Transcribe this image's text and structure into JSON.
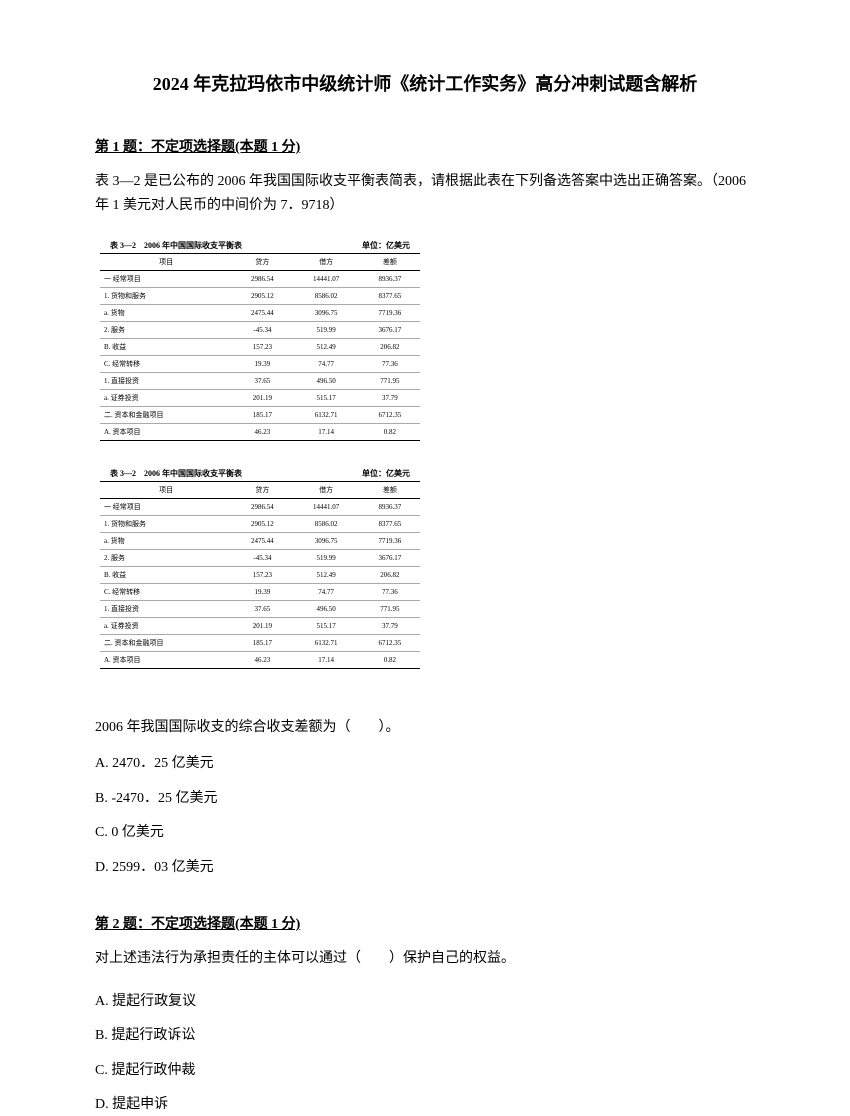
{
  "title": "2024 年克拉玛依市中级统计师《统计工作实务》高分冲刺试题含解析",
  "q1": {
    "header": "第 1 题：不定项选择题(本题 1 分)",
    "text": "表 3—2 是已公布的 2006 年我国国际收支平衡表简表，请根据此表在下列备选答案中选出正确答案。（2006 年 1 美元对人民币的中间价为 7．9718）",
    "subQuestion": "2006 年我国国际收支的综合收支差额为（　　）。",
    "options": {
      "A": "A. 2470．25 亿美元",
      "B": "B. -2470．25 亿美元",
      "C": "C. 0 亿美元",
      "D": "D. 2599．03 亿美元"
    }
  },
  "q2": {
    "header": "第 2 题：不定项选择题(本题 1 分)",
    "text": "对上述违法行为承担责任的主体可以通过（　　）保护自己的权益。",
    "options": {
      "A": "A. 提起行政复议",
      "B": "B. 提起行政诉讼",
      "C": "C. 提起行政仲裁",
      "D": "D. 提起申诉"
    }
  },
  "table": {
    "title": "表 3—2　2006 年中国国际收支平衡表",
    "unit": "单位：亿美元",
    "columns": [
      "项目",
      "贷方",
      "借方",
      "差额"
    ],
    "rows": [
      [
        "一 经常项目",
        "2986.54",
        "14441.07",
        "8936.37"
      ],
      [
        "1. 货物和服务",
        "2905.12",
        "8586.02",
        "8377.65"
      ],
      [
        "a. 货物",
        "2475.44",
        "3096.75",
        "7719.36"
      ],
      [
        "2. 服务",
        "-45.34",
        "519.99",
        "3676.17"
      ],
      [
        "B. 收益",
        "157.23",
        "512.49",
        "206.82"
      ],
      [
        "C. 经常转移",
        "19.39",
        "74.77",
        "77.36"
      ],
      [
        "1. 直接投资",
        "37.65",
        "496.50",
        "771.95"
      ],
      [
        "a. 证券投资",
        "201.19",
        "515.17",
        "37.79"
      ],
      [
        "二. 资本和金融项目",
        "185.17",
        "6132.71",
        "6712.35"
      ],
      [
        "A. 资本项目",
        "46.23",
        "17.14",
        "0.82"
      ]
    ]
  },
  "styles": {
    "background_color": "#ffffff",
    "text_color": "#000000",
    "title_fontsize": 18,
    "body_fontsize": 14,
    "table_fontsize": 7,
    "table_border_color": "#000000",
    "table_row_border_color": "#aaaaaa"
  }
}
